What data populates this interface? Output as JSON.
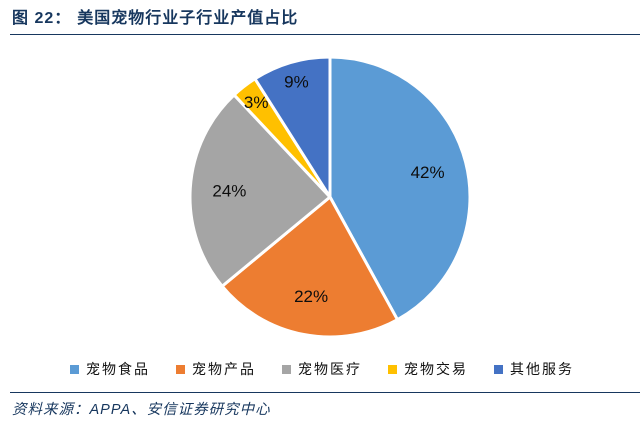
{
  "title": {
    "prefix": "图 22：",
    "text": "美国宠物行业子行业产值占比"
  },
  "chart_data": {
    "type": "pie",
    "title": "美国宠物行业子行业产值占比",
    "categories": [
      "宠物食品",
      "宠物产品",
      "宠物医疗",
      "宠物交易",
      "其他服务"
    ],
    "values": [
      42,
      22,
      24,
      3,
      9
    ],
    "labels": [
      "42%",
      "22%",
      "24%",
      "3%",
      "9%"
    ],
    "colors": [
      "#5B9BD5",
      "#ED7D31",
      "#A5A5A5",
      "#FFC000",
      "#4472C4"
    ],
    "start_angle_deg": 0,
    "direction": "clockwise",
    "legend_position": "bottom",
    "label_color": "#0d0d0d"
  },
  "source": {
    "label": "资料来源：",
    "text": "APPA、安信证券研究中心"
  },
  "colors": {
    "accent_navy": "#17375E",
    "background": "#ffffff"
  }
}
